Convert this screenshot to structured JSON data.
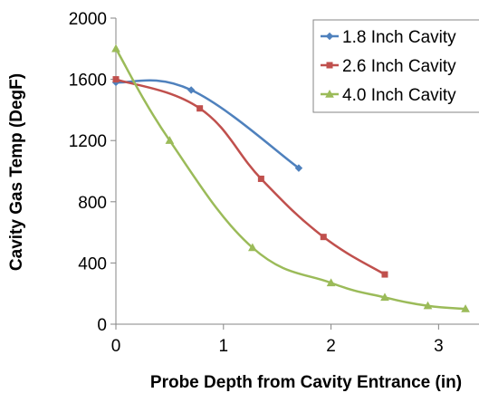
{
  "chart_data": {
    "type": "line",
    "title": "",
    "xlabel": "Probe Depth from Cavity Entrance  (in)",
    "ylabel": "Cavity Gas Temp  (DegF)",
    "xlim": [
      0,
      3.3
    ],
    "ylim": [
      0,
      2000
    ],
    "xticks": [
      "0",
      "1",
      "2",
      "3"
    ],
    "yticks": [
      "0",
      "400",
      "800",
      "1200",
      "1600",
      "2000"
    ],
    "grid": false,
    "legend_position": "top-right",
    "smooth": true,
    "series": [
      {
        "name": "1.8 Inch Cavity",
        "color": "#4F81BD",
        "marker": "diamond",
        "x": [
          0,
          0.7,
          1.7
        ],
        "y": [
          1580,
          1530,
          1020
        ]
      },
      {
        "name": "2.6 Inch Cavity",
        "color": "#C0504D",
        "marker": "square",
        "x": [
          0,
          0.78,
          1.35,
          1.93,
          2.5
        ],
        "y": [
          1600,
          1410,
          950,
          570,
          325
        ]
      },
      {
        "name": "4.0 Inch Cavity",
        "color": "#9BBB59",
        "marker": "triangle",
        "x": [
          0,
          0.5,
          1.27,
          2.0,
          2.5,
          2.9,
          3.25
        ],
        "y": [
          1800,
          1200,
          500,
          270,
          175,
          120,
          100
        ]
      }
    ]
  }
}
